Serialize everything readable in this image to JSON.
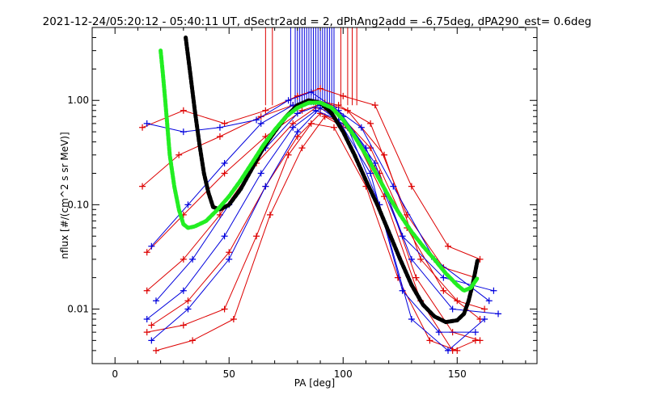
{
  "chart_data": {
    "type": "line",
    "title": "2021-12-24/05:20:12 - 05:40:11 UT, dSectr2add = 2, dPhAng2add = -6.75deg, dPA290_est=   0.6deg",
    "xlabel": "PA [deg]",
    "ylabel": "nflux [#/(cm^2 s sr MeV)]",
    "xlim": [
      -10,
      185
    ],
    "ylim": [
      0.003,
      5.0
    ],
    "yscale": "log",
    "x_ticks": [
      {
        "value": 0,
        "label": "0"
      },
      {
        "value": 50,
        "label": "50"
      },
      {
        "value": 100,
        "label": "100"
      },
      {
        "value": 150,
        "label": "150"
      }
    ],
    "y_ticks": [
      {
        "value": 0.01,
        "label": "0.01"
      },
      {
        "value": 0.1,
        "label": "0.10"
      },
      {
        "value": 1.0,
        "label": "1.00"
      }
    ],
    "grid": false,
    "legend": "none",
    "colors": {
      "series_a": "#dd0000",
      "series_b": "#0000dd",
      "fit_black": "#000000",
      "fit_green": "#22ee22"
    },
    "series": [
      {
        "color": "#dd0000",
        "x": [
          12,
          30,
          48,
          66,
          80,
          90,
          100,
          114,
          130,
          146,
          160
        ],
        "y": [
          0.55,
          0.8,
          0.6,
          0.8,
          1.1,
          1.3,
          1.1,
          0.9,
          0.15,
          0.04,
          0.03
        ]
      },
      {
        "color": "#dd0000",
        "x": [
          12,
          28,
          46,
          64,
          78,
          88,
          98,
          112,
          128,
          144,
          158
        ],
        "y": [
          0.15,
          0.3,
          0.45,
          0.7,
          0.9,
          1.0,
          0.9,
          0.6,
          0.08,
          0.025,
          0.02
        ]
      },
      {
        "color": "#dd0000",
        "x": [
          14,
          30,
          48,
          66,
          82,
          92,
          102,
          118,
          134,
          150,
          162
        ],
        "y": [
          0.035,
          0.08,
          0.2,
          0.45,
          0.8,
          0.95,
          0.8,
          0.3,
          0.03,
          0.012,
          0.01
        ]
      },
      {
        "color": "#dd0000",
        "x": [
          14,
          30,
          46,
          62,
          78,
          88,
          98,
          112,
          128,
          144,
          160
        ],
        "y": [
          0.015,
          0.03,
          0.08,
          0.25,
          0.6,
          0.85,
          0.75,
          0.35,
          0.06,
          0.015,
          0.008
        ]
      },
      {
        "color": "#dd0000",
        "x": [
          16,
          32,
          50,
          66,
          80,
          90,
          100,
          116,
          132,
          148,
          160
        ],
        "y": [
          0.007,
          0.012,
          0.035,
          0.15,
          0.45,
          0.75,
          0.6,
          0.2,
          0.02,
          0.006,
          0.005
        ]
      },
      {
        "color": "#dd0000",
        "x": [
          14,
          30,
          48,
          62,
          76,
          86,
          96,
          110,
          124,
          138,
          150
        ],
        "y": [
          0.006,
          0.007,
          0.01,
          0.05,
          0.3,
          0.6,
          0.55,
          0.15,
          0.02,
          0.005,
          0.004
        ]
      },
      {
        "color": "#dd0000",
        "x": [
          18,
          34,
          52,
          68,
          82,
          92,
          104,
          118,
          134,
          148,
          158
        ],
        "y": [
          0.004,
          0.005,
          0.008,
          0.08,
          0.35,
          0.7,
          0.5,
          0.12,
          0.012,
          0.004,
          0.005
        ]
      },
      {
        "color": "#0000dd",
        "x": [
          14,
          30,
          46,
          62,
          76,
          86,
          96,
          108,
          122,
          140,
          164
        ],
        "y": [
          0.6,
          0.5,
          0.55,
          0.65,
          1.0,
          1.2,
          0.85,
          0.55,
          0.15,
          0.03,
          0.012
        ]
      },
      {
        "color": "#0000dd",
        "x": [
          16,
          32,
          48,
          64,
          78,
          88,
          98,
          110,
          126,
          144,
          166
        ],
        "y": [
          0.04,
          0.1,
          0.25,
          0.6,
          0.9,
          1.0,
          0.8,
          0.35,
          0.05,
          0.02,
          0.015
        ]
      },
      {
        "color": "#0000dd",
        "x": [
          18,
          34,
          50,
          66,
          80,
          90,
          100,
          114,
          130,
          148,
          168
        ],
        "y": [
          0.012,
          0.03,
          0.1,
          0.35,
          0.75,
          0.9,
          0.7,
          0.25,
          0.03,
          0.01,
          0.009
        ]
      },
      {
        "color": "#0000dd",
        "x": [
          14,
          30,
          48,
          64,
          78,
          88,
          98,
          112,
          126,
          142,
          158
        ],
        "y": [
          0.008,
          0.015,
          0.05,
          0.2,
          0.55,
          0.8,
          0.65,
          0.2,
          0.015,
          0.006,
          0.006
        ]
      },
      {
        "color": "#0000dd",
        "x": [
          16,
          32,
          50,
          66,
          80,
          90,
          102,
          116,
          130,
          146,
          162
        ],
        "y": [
          0.005,
          0.01,
          0.03,
          0.15,
          0.5,
          0.85,
          0.55,
          0.1,
          0.008,
          0.004,
          0.008
        ]
      }
    ],
    "fits": [
      {
        "name": "",
        "color": "#000000",
        "x": [
          31,
          33,
          35,
          37,
          39,
          41,
          43,
          46,
          50,
          55,
          60,
          65,
          70,
          75,
          80,
          85,
          90,
          95,
          100,
          105,
          110,
          115,
          120,
          125,
          130,
          135,
          140,
          145,
          150,
          153,
          155,
          157,
          159
        ],
        "y": [
          4.0,
          1.8,
          0.8,
          0.38,
          0.2,
          0.13,
          0.095,
          0.09,
          0.1,
          0.14,
          0.22,
          0.35,
          0.5,
          0.7,
          0.9,
          1.0,
          0.95,
          0.75,
          0.5,
          0.3,
          0.17,
          0.1,
          0.055,
          0.03,
          0.017,
          0.011,
          0.0085,
          0.0075,
          0.0078,
          0.009,
          0.012,
          0.018,
          0.03
        ]
      },
      {
        "name": "",
        "color": "#22ee22",
        "x": [
          20,
          21,
          22,
          23,
          24,
          26,
          28,
          30,
          32,
          35,
          40,
          45,
          50,
          55,
          60,
          65,
          70,
          75,
          80,
          85,
          90,
          95,
          100,
          105,
          110,
          115,
          120,
          125,
          130,
          135,
          140,
          145,
          150,
          153,
          156,
          159
        ],
        "y": [
          3.0,
          1.8,
          1.0,
          0.55,
          0.3,
          0.15,
          0.09,
          0.065,
          0.06,
          0.062,
          0.07,
          0.09,
          0.12,
          0.17,
          0.25,
          0.37,
          0.52,
          0.7,
          0.85,
          0.95,
          0.95,
          0.85,
          0.65,
          0.45,
          0.3,
          0.19,
          0.12,
          0.08,
          0.055,
          0.04,
          0.03,
          0.022,
          0.017,
          0.015,
          0.016,
          0.02
        ]
      }
    ],
    "spikes": [
      {
        "color": "#dd0000",
        "x": [
          66,
          69,
          99,
          102,
          104,
          106
        ]
      },
      {
        "color": "#0000dd",
        "x": [
          77,
          79,
          80,
          81,
          82,
          83,
          84,
          85,
          86,
          87,
          88,
          89,
          90,
          91,
          92,
          93,
          94,
          95,
          96
        ]
      }
    ]
  }
}
